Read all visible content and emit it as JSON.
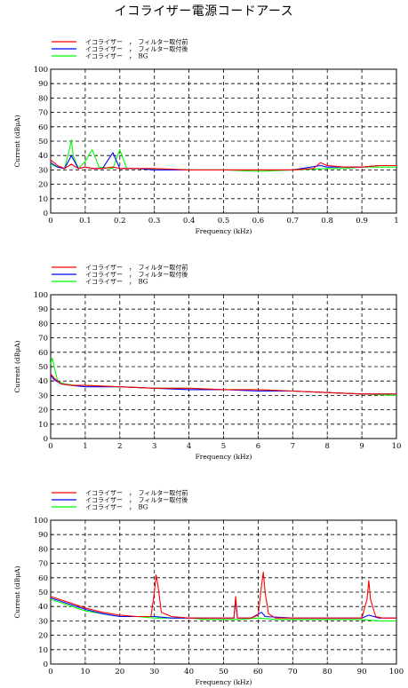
{
  "title": "イコライザー電源コードアース",
  "legend": [
    {
      "label": "イコライザー　，　フィルター取付前",
      "color": "#ff0000"
    },
    {
      "label": "イコライザー　，　フィルター取付後",
      "color": "#0000ff"
    },
    {
      "label": "イコライザー　，　BG",
      "color": "#00ff00"
    }
  ],
  "chart_data": [
    {
      "type": "line",
      "xlabel": "Frequency (kHz)",
      "ylabel": "Current (dBμA)",
      "xlim": [
        0,
        1
      ],
      "ylim": [
        0,
        100
      ],
      "xticks": [
        "0",
        "0.1",
        "0.2",
        "0.3",
        "0.4",
        "0.5",
        "0.6",
        "0.7",
        "0.8",
        "0.9",
        "1"
      ],
      "yticks": [
        "0",
        "10",
        "20",
        "30",
        "40",
        "50",
        "60",
        "70",
        "80",
        "90",
        "100"
      ],
      "grid": true,
      "legend_position": "top-left",
      "series": [
        {
          "name": "イコライザー　，　フィルター取付前",
          "color": "#ff0000",
          "x": [
            0,
            0.02,
            0.04,
            0.06,
            0.08,
            0.1,
            0.12,
            0.15,
            0.18,
            0.2,
            0.25,
            0.3,
            0.4,
            0.5,
            0.6,
            0.7,
            0.76,
            0.78,
            0.8,
            0.85,
            0.9,
            0.95,
            1.0
          ],
          "y": [
            37,
            33,
            31,
            34,
            31,
            32,
            31,
            31,
            32,
            31,
            31,
            31,
            30,
            30,
            30,
            30,
            31,
            35,
            33,
            32,
            32,
            33,
            33
          ]
        },
        {
          "name": "イコライザー　，　フィルター取付後",
          "color": "#0000ff",
          "x": [
            0,
            0.02,
            0.04,
            0.06,
            0.08,
            0.1,
            0.12,
            0.15,
            0.18,
            0.2,
            0.25,
            0.3,
            0.4,
            0.5,
            0.6,
            0.7,
            0.78,
            0.8,
            0.85,
            0.9,
            0.95,
            1.0
          ],
          "y": [
            35,
            32,
            31,
            40,
            31,
            32,
            31,
            31,
            42,
            31,
            31,
            30,
            30,
            30,
            30,
            30,
            33,
            32,
            32,
            32,
            33,
            33
          ]
        },
        {
          "name": "イコライザー　，　BG",
          "color": "#00ff00",
          "x": [
            0,
            0.02,
            0.04,
            0.055,
            0.06,
            0.065,
            0.08,
            0.1,
            0.12,
            0.14,
            0.18,
            0.2,
            0.22,
            0.25,
            0.3,
            0.4,
            0.5,
            0.6,
            0.7,
            0.8,
            0.85,
            0.9,
            0.95,
            1.0
          ],
          "y": [
            34,
            32,
            31,
            45,
            51,
            40,
            31,
            36,
            44,
            32,
            31,
            44,
            31,
            31,
            30,
            30,
            30,
            29,
            30,
            31,
            31,
            32,
            32,
            32
          ]
        }
      ]
    },
    {
      "type": "line",
      "xlabel": "Frequency (kHz)",
      "ylabel": "Current (dBμA)",
      "xlim": [
        0,
        10
      ],
      "ylim": [
        0,
        100
      ],
      "xticks": [
        "0",
        "1",
        "2",
        "3",
        "4",
        "5",
        "6",
        "7",
        "8",
        "9",
        "10"
      ],
      "yticks": [
        "0",
        "10",
        "20",
        "30",
        "40",
        "50",
        "60",
        "70",
        "80",
        "90",
        "100"
      ],
      "grid": true,
      "legend_position": "top-left",
      "series": [
        {
          "name": "イコライザー　，　フィルター取付前",
          "color": "#ff0000",
          "x": [
            0,
            0.1,
            0.3,
            0.6,
            1,
            2,
            3,
            4,
            5,
            6,
            7,
            8,
            9,
            10
          ],
          "y": [
            45,
            42,
            38,
            37,
            37,
            36,
            35,
            35,
            34,
            34,
            33,
            32,
            31,
            31
          ]
        },
        {
          "name": "イコライザー　，　フィルター取付後",
          "color": "#0000ff",
          "x": [
            0,
            0.1,
            0.3,
            0.6,
            1,
            2,
            3,
            4,
            5,
            6,
            7,
            8,
            9,
            10
          ],
          "y": [
            44,
            41,
            38,
            37,
            36,
            36,
            35,
            34,
            34,
            33,
            33,
            32,
            31,
            31
          ]
        },
        {
          "name": "イコライザー　，　BG",
          "color": "#00ff00",
          "x": [
            0,
            0.05,
            0.1,
            0.2,
            0.4,
            0.7,
            1,
            2,
            3,
            4,
            5,
            6,
            7,
            8,
            9,
            10
          ],
          "y": [
            52,
            56,
            50,
            40,
            38,
            37,
            37,
            36,
            35,
            35,
            34,
            34,
            33,
            32,
            31,
            30
          ]
        }
      ]
    },
    {
      "type": "line",
      "xlabel": "Frequency (kHz)",
      "ylabel": "Current (dBμA)",
      "xlim": [
        0,
        100
      ],
      "ylim": [
        0,
        100
      ],
      "xticks": [
        "0",
        "10",
        "20",
        "30",
        "40",
        "50",
        "60",
        "70",
        "80",
        "90",
        "100"
      ],
      "yticks": [
        "0",
        "10",
        "20",
        "30",
        "40",
        "50",
        "60",
        "70",
        "80",
        "90",
        "100"
      ],
      "grid": true,
      "legend_position": "top-left",
      "series": [
        {
          "name": "イコライザー　，　フィルター取付前",
          "color": "#ff0000",
          "x": [
            0,
            5,
            10,
            15,
            20,
            25,
            29,
            30,
            30.5,
            31,
            32,
            35,
            40,
            45,
            50,
            53,
            53.5,
            54,
            58,
            60,
            61,
            61.5,
            62,
            63,
            65,
            70,
            80,
            90,
            91.5,
            92,
            92.5,
            94,
            96,
            100
          ],
          "y": [
            47,
            43,
            39,
            36,
            34,
            33,
            33,
            50,
            62,
            55,
            36,
            33,
            32,
            32,
            32,
            32,
            47,
            32,
            32,
            34,
            55,
            64,
            50,
            35,
            32,
            32,
            32,
            32,
            45,
            58,
            45,
            33,
            32,
            32
          ]
        },
        {
          "name": "イコライザー　，　フィルター取付後",
          "color": "#0000ff",
          "x": [
            0,
            5,
            10,
            15,
            20,
            25,
            30,
            35,
            40,
            45,
            50,
            53,
            53.5,
            54,
            58,
            61,
            62,
            70,
            80,
            90,
            92,
            95,
            100
          ],
          "y": [
            46,
            42,
            38,
            35,
            33,
            33,
            33,
            32,
            32,
            32,
            32,
            32,
            44,
            32,
            32,
            36,
            33,
            32,
            32,
            32,
            34,
            32,
            32
          ]
        },
        {
          "name": "イコライザー　，　BG",
          "color": "#00ff00",
          "x": [
            0,
            5,
            10,
            15,
            20,
            25,
            30,
            35,
            40,
            45,
            50,
            55,
            60,
            65,
            70,
            75,
            80,
            85,
            90,
            95,
            100
          ],
          "y": [
            45,
            41,
            37,
            35,
            33,
            33,
            32,
            32,
            32,
            31,
            31,
            31,
            32,
            31,
            31,
            31,
            31,
            31,
            31,
            30,
            30
          ]
        }
      ]
    }
  ]
}
